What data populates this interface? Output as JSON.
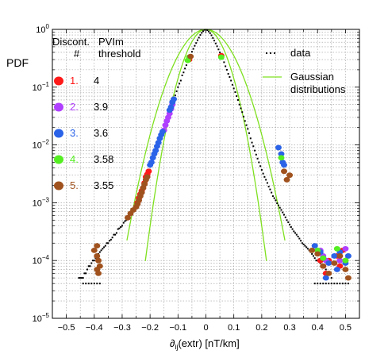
{
  "chart_data": {
    "type": "scatter",
    "title": "",
    "ylabel": "PDF",
    "xlabel_prefix": "∂",
    "xlabel_sub": "ij",
    "xlabel_rest": "(extr) [nT/km]",
    "xlim": [
      -0.55,
      0.55
    ],
    "ylim": [
      1e-05,
      1
    ],
    "yscale": "log",
    "grid": true,
    "x_ticks": [
      -0.5,
      -0.4,
      -0.3,
      -0.2,
      -0.1,
      0,
      0.1,
      0.2,
      0.3,
      0.4,
      0.5
    ],
    "x_tick_labels": [
      "−0.5",
      "−0.4",
      "−0.3",
      "−0.2",
      "−0.1",
      "0",
      "0.1",
      "0.2",
      "0.3",
      "0.4",
      "0.5"
    ],
    "y_ticks": [
      {
        "value": 1,
        "mantissa": "10",
        "exp": "0"
      },
      {
        "value": 0.1,
        "mantissa": "10",
        "exp": "−1"
      },
      {
        "value": 0.01,
        "mantissa": "10",
        "exp": "−2"
      },
      {
        "value": 0.001,
        "mantissa": "10",
        "exp": "−3"
      },
      {
        "value": 0.0001,
        "mantissa": "10",
        "exp": "−4"
      },
      {
        "value": 1e-05,
        "mantissa": "10",
        "exp": "−5"
      }
    ],
    "legend": {
      "placement": "top-right",
      "data_label": "data",
      "gauss_label_1": "Gaussian",
      "gauss_label_2": "distributions"
    },
    "disc_table": {
      "placement": "top-left",
      "header_col1_line1": "Discont.",
      "header_col1_line2": "#",
      "header_col2_line1": "PVIm",
      "header_col2_line2": "threshold",
      "rows": [
        {
          "num": "1.",
          "threshold": "4",
          "color": "#ff1a1a"
        },
        {
          "num": "2.",
          "threshold": "3.9",
          "color": "#b040ff"
        },
        {
          "num": "3.",
          "threshold": "3.6",
          "color": "#2a62e8"
        },
        {
          "num": "4.",
          "threshold": "3.58",
          "color": "#55ee22"
        },
        {
          "num": "5.",
          "threshold": "3.55",
          "color": "#a0521e"
        }
      ]
    },
    "gaussians": [
      {
        "sigma": 0.069,
        "x_range": [
          -0.283,
          0.283
        ]
      },
      {
        "sigma": 0.0505,
        "x_range": [
          -0.217,
          0.217
        ]
      }
    ],
    "gauss_color": "#7fe020",
    "data_color": "#000000",
    "data_series": {
      "left": [
        [
          -0.005,
          0.98
        ],
        [
          -0.01,
          0.93
        ],
        [
          -0.015,
          0.87
        ],
        [
          -0.02,
          0.8
        ],
        [
          -0.025,
          0.72
        ],
        [
          -0.03,
          0.65
        ],
        [
          -0.035,
          0.58
        ],
        [
          -0.04,
          0.52
        ],
        [
          -0.045,
          0.46
        ],
        [
          -0.05,
          0.41
        ],
        [
          -0.055,
          0.36
        ],
        [
          -0.06,
          0.32
        ],
        [
          -0.065,
          0.28
        ],
        [
          -0.07,
          0.24
        ],
        [
          -0.075,
          0.21
        ],
        [
          -0.08,
          0.18
        ],
        [
          -0.085,
          0.16
        ],
        [
          -0.09,
          0.13
        ],
        [
          -0.095,
          0.115
        ],
        [
          -0.1,
          0.1
        ],
        [
          -0.105,
          0.085
        ],
        [
          -0.11,
          0.072
        ],
        [
          -0.115,
          0.062
        ],
        [
          -0.12,
          0.052
        ],
        [
          -0.125,
          0.045
        ],
        [
          -0.13,
          0.038
        ],
        [
          -0.135,
          0.032
        ],
        [
          -0.14,
          0.027
        ],
        [
          -0.145,
          0.023
        ],
        [
          -0.15,
          0.019
        ],
        [
          -0.155,
          0.016
        ],
        [
          -0.16,
          0.014
        ],
        [
          -0.165,
          0.012
        ],
        [
          -0.17,
          0.0098
        ],
        [
          -0.175,
          0.0083
        ],
        [
          -0.18,
          0.007
        ],
        [
          -0.185,
          0.006
        ],
        [
          -0.19,
          0.005
        ],
        [
          -0.195,
          0.0043
        ],
        [
          -0.2,
          0.0037
        ],
        [
          -0.205,
          0.0032
        ],
        [
          -0.21,
          0.0028
        ],
        [
          -0.215,
          0.0024
        ],
        [
          -0.22,
          0.0021
        ],
        [
          -0.225,
          0.0018
        ],
        [
          -0.23,
          0.0016
        ],
        [
          -0.235,
          0.0014
        ],
        [
          -0.24,
          0.0012
        ],
        [
          -0.245,
          0.001
        ],
        [
          -0.25,
          0.0009
        ],
        [
          -0.255,
          0.00085
        ],
        [
          -0.26,
          0.0008
        ],
        [
          -0.265,
          0.00075
        ],
        [
          -0.27,
          0.0007
        ],
        [
          -0.275,
          0.0006
        ],
        [
          -0.28,
          0.00056
        ],
        [
          -0.285,
          0.0005
        ],
        [
          -0.29,
          0.00048
        ],
        [
          -0.295,
          0.00045
        ],
        [
          -0.3,
          0.0004
        ],
        [
          -0.305,
          0.00038
        ],
        [
          -0.31,
          0.00036
        ],
        [
          -0.315,
          0.00035
        ],
        [
          -0.32,
          0.0003
        ],
        [
          -0.325,
          0.00028
        ],
        [
          -0.33,
          0.00028
        ],
        [
          -0.335,
          0.00025
        ],
        [
          -0.34,
          0.00023
        ],
        [
          -0.345,
          0.00022
        ],
        [
          -0.35,
          0.0002
        ],
        [
          -0.355,
          0.0002
        ],
        [
          -0.36,
          0.00018
        ],
        [
          -0.365,
          0.00017
        ],
        [
          -0.37,
          0.00016
        ],
        [
          -0.375,
          0.00015
        ],
        [
          -0.38,
          0.00014
        ],
        [
          -0.385,
          0.00013
        ],
        [
          -0.39,
          0.00012
        ],
        [
          -0.395,
          0.00011
        ],
        [
          -0.4,
          0.0001
        ],
        [
          -0.405,
          0.0001
        ],
        [
          -0.41,
          9e-05
        ],
        [
          -0.415,
          8e-05
        ],
        [
          -0.42,
          8e-05
        ],
        [
          -0.425,
          7e-05
        ],
        [
          -0.43,
          6e-05
        ],
        [
          -0.435,
          6e-05
        ],
        [
          -0.44,
          5e-05
        ],
        [
          -0.445,
          5e-05
        ],
        [
          -0.45,
          5e-05
        ],
        [
          -0.455,
          5e-05
        ]
      ],
      "right": [
        [
          0.005,
          0.97
        ],
        [
          0.01,
          0.92
        ],
        [
          0.015,
          0.86
        ],
        [
          0.02,
          0.79
        ],
        [
          0.025,
          0.71
        ],
        [
          0.03,
          0.64
        ],
        [
          0.035,
          0.57
        ],
        [
          0.04,
          0.51
        ],
        [
          0.045,
          0.45
        ],
        [
          0.05,
          0.4
        ],
        [
          0.055,
          0.35
        ],
        [
          0.06,
          0.31
        ],
        [
          0.065,
          0.27
        ],
        [
          0.07,
          0.23
        ],
        [
          0.075,
          0.2
        ],
        [
          0.08,
          0.17
        ],
        [
          0.085,
          0.15
        ],
        [
          0.09,
          0.13
        ],
        [
          0.095,
          0.11
        ],
        [
          0.1,
          0.095
        ],
        [
          0.105,
          0.082
        ],
        [
          0.11,
          0.07
        ],
        [
          0.115,
          0.06
        ],
        [
          0.12,
          0.05
        ],
        [
          0.125,
          0.043
        ],
        [
          0.13,
          0.037
        ],
        [
          0.135,
          0.031
        ],
        [
          0.14,
          0.026
        ],
        [
          0.145,
          0.022
        ],
        [
          0.15,
          0.019
        ],
        [
          0.155,
          0.016
        ],
        [
          0.16,
          0.013
        ],
        [
          0.165,
          0.011
        ],
        [
          0.17,
          0.0095
        ],
        [
          0.175,
          0.008
        ],
        [
          0.18,
          0.0068
        ],
        [
          0.185,
          0.0058
        ],
        [
          0.19,
          0.005
        ],
        [
          0.195,
          0.0043
        ],
        [
          0.2,
          0.0037
        ],
        [
          0.205,
          0.0032
        ],
        [
          0.21,
          0.0028
        ],
        [
          0.215,
          0.0025
        ],
        [
          0.22,
          0.0022
        ],
        [
          0.225,
          0.0019
        ],
        [
          0.23,
          0.0017
        ],
        [
          0.235,
          0.0015
        ],
        [
          0.24,
          0.0013
        ],
        [
          0.245,
          0.0012
        ],
        [
          0.25,
          0.0011
        ],
        [
          0.255,
          0.00098
        ],
        [
          0.26,
          0.0009
        ],
        [
          0.265,
          0.00082
        ],
        [
          0.27,
          0.00075
        ],
        [
          0.275,
          0.00068
        ],
        [
          0.28,
          0.00062
        ],
        [
          0.285,
          0.00056
        ],
        [
          0.29,
          0.0005
        ],
        [
          0.295,
          0.00046
        ],
        [
          0.3,
          0.00042
        ],
        [
          0.305,
          0.00038
        ],
        [
          0.31,
          0.00035
        ],
        [
          0.315,
          0.00032
        ],
        [
          0.32,
          0.0003
        ],
        [
          0.325,
          0.00028
        ],
        [
          0.33,
          0.00026
        ],
        [
          0.335,
          0.00024
        ],
        [
          0.34,
          0.00022
        ],
        [
          0.345,
          0.0002
        ],
        [
          0.35,
          0.00019
        ],
        [
          0.355,
          0.00018
        ],
        [
          0.36,
          0.00017
        ],
        [
          0.365,
          0.00016
        ],
        [
          0.37,
          0.00015
        ],
        [
          0.375,
          0.00014
        ],
        [
          0.38,
          0.00013
        ],
        [
          0.385,
          0.00012
        ],
        [
          0.39,
          0.00011
        ],
        [
          0.395,
          0.0001
        ],
        [
          0.4,
          0.0001
        ],
        [
          0.41,
          9e-05
        ],
        [
          0.42,
          8e-05
        ],
        [
          0.43,
          7e-05
        ],
        [
          0.44,
          6e-05
        ],
        [
          0.45,
          5e-05
        ]
      ],
      "floor": [
        [
          -0.44,
          4e-05
        ],
        [
          -0.43,
          4e-05
        ],
        [
          -0.42,
          4e-05
        ],
        [
          -0.41,
          4e-05
        ],
        [
          -0.4,
          4e-05
        ],
        [
          -0.39,
          4e-05
        ],
        [
          -0.38,
          4e-05
        ],
        [
          0.39,
          4e-05
        ],
        [
          0.4,
          4e-05
        ],
        [
          0.41,
          4e-05
        ],
        [
          0.42,
          4e-05
        ],
        [
          0.43,
          4e-05
        ],
        [
          0.44,
          4e-05
        ],
        [
          0.45,
          4e-05
        ],
        [
          0.46,
          4e-05
        ],
        [
          0.47,
          4e-05
        ],
        [
          0.48,
          4e-05
        ],
        [
          0.49,
          4e-05
        ],
        [
          0.5,
          4e-05
        ],
        [
          0.51,
          4e-05
        ]
      ]
    },
    "discontinuities": [
      {
        "disc": 1,
        "points": [
          [
            -0.22,
            0.0022
          ],
          [
            -0.225,
            0.0018
          ],
          [
            -0.23,
            0.0016
          ],
          [
            -0.235,
            0.0014
          ],
          [
            -0.24,
            0.0012
          ],
          [
            -0.245,
            0.001
          ],
          [
            -0.215,
            0.0028
          ],
          [
            -0.21,
            0.0031
          ],
          [
            -0.205,
            0.0035
          ],
          [
            -0.06,
            0.3
          ],
          [
            0.055,
            0.35
          ],
          [
            0.41,
            0.0001
          ],
          [
            0.42,
            8e-05
          ],
          [
            0.44,
            0.0001
          ],
          [
            0.47,
            0.00012
          ],
          [
            0.5,
            0.0001
          ],
          [
            0.48,
            8e-05
          ],
          [
            0.43,
            6e-05
          ],
          [
            0.49,
            0.00015
          ]
        ]
      },
      {
        "disc": 2,
        "points": [
          [
            -0.15,
            0.018
          ],
          [
            -0.145,
            0.022
          ],
          [
            -0.14,
            0.026
          ],
          [
            -0.135,
            0.03
          ],
          [
            -0.13,
            0.035
          ],
          [
            -0.125,
            0.042
          ],
          [
            -0.12,
            0.05
          ],
          [
            0.41,
            0.00015
          ],
          [
            0.43,
            0.0001
          ],
          [
            0.5,
            0.00016
          ],
          [
            0.42,
            0.00012
          ],
          [
            0.48,
            0.0001
          ]
        ]
      },
      {
        "disc": 3,
        "points": [
          [
            -0.2,
            0.0045
          ],
          [
            -0.195,
            0.005
          ],
          [
            -0.19,
            0.006
          ],
          [
            -0.185,
            0.007
          ],
          [
            -0.18,
            0.008
          ],
          [
            -0.175,
            0.0095
          ],
          [
            -0.17,
            0.011
          ],
          [
            -0.165,
            0.013
          ],
          [
            -0.16,
            0.015
          ],
          [
            -0.155,
            0.017
          ],
          [
            -0.13,
            0.04
          ],
          [
            -0.125,
            0.045
          ],
          [
            -0.12,
            0.055
          ],
          [
            -0.115,
            0.062
          ],
          [
            0.26,
            0.009
          ],
          [
            0.27,
            0.007
          ],
          [
            0.275,
            0.005
          ],
          [
            0.28,
            0.0045
          ],
          [
            0.39,
            0.00018
          ],
          [
            0.41,
            0.00014
          ],
          [
            0.42,
            0.00011
          ],
          [
            0.44,
            9e-05
          ],
          [
            0.46,
            0.00012
          ],
          [
            0.48,
            0.00014
          ],
          [
            0.5,
            9e-05
          ],
          [
            0.51,
            0.00012
          ],
          [
            0.47,
            7e-05
          ],
          [
            0.43,
            5e-05
          ]
        ]
      },
      {
        "disc": 4,
        "points": [
          [
            -0.06,
            0.33
          ],
          [
            -0.065,
            0.29
          ],
          [
            0.055,
            0.33
          ],
          [
            0.27,
            0.006
          ],
          [
            0.4,
            0.00015
          ],
          [
            0.47,
            0.00016
          ],
          [
            0.42,
            0.00011
          ],
          [
            0.5,
            0.0001
          ]
        ]
      },
      {
        "disc": 5,
        "points": [
          [
            -0.21,
            0.0028
          ],
          [
            -0.215,
            0.0025
          ],
          [
            -0.22,
            0.0021
          ],
          [
            -0.225,
            0.0018
          ],
          [
            -0.23,
            0.0015
          ],
          [
            -0.235,
            0.0013
          ],
          [
            -0.24,
            0.0011
          ],
          [
            -0.245,
            0.00095
          ],
          [
            -0.25,
            0.00085
          ],
          [
            -0.26,
            0.00075
          ],
          [
            -0.27,
            0.00065
          ],
          [
            -0.28,
            0.00055
          ],
          [
            -0.39,
            0.00018
          ],
          [
            -0.4,
            0.00015
          ],
          [
            -0.39,
            0.00012
          ],
          [
            -0.385,
            0.0001
          ],
          [
            -0.38,
            8e-05
          ],
          [
            -0.39,
            7e-05
          ],
          [
            -0.385,
            6e-05
          ],
          [
            -0.055,
            0.34
          ],
          [
            0.28,
            0.0035
          ],
          [
            0.3,
            0.003
          ],
          [
            0.29,
            0.0025
          ],
          [
            0.38,
            0.00015
          ],
          [
            0.4,
            0.00013
          ],
          [
            0.42,
            8e-05
          ],
          [
            0.44,
            6e-05
          ],
          [
            0.46,
            9e-05
          ],
          [
            0.48,
            0.00012
          ],
          [
            0.5,
            7e-05
          ],
          [
            0.51,
            5e-05
          ]
        ]
      }
    ]
  }
}
